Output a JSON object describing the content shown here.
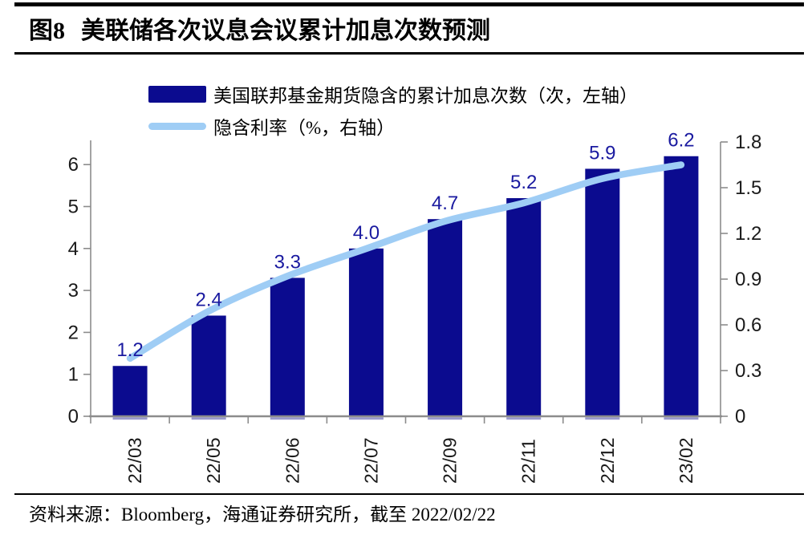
{
  "page": {
    "title_prefix": "图8",
    "title": "美联储各次议息会议累计加息次数预测"
  },
  "legend": [
    {
      "label": "美国联邦基金期货隐含的累计加息次数（次，左轴）",
      "type": "bar",
      "color": "#0b0b8f"
    },
    {
      "label": "隐含利率（%，右轴）",
      "type": "line",
      "color": "#9fcdf5"
    }
  ],
  "source": {
    "text": "资料来源：Bloomberg，海通证券研究所，截至 2022/02/22"
  },
  "chart_data": {
    "type": "bar+line",
    "title": "图8 美联储各次议息会议累计加息次数预测",
    "categories": [
      "22/03",
      "22/05",
      "22/06",
      "22/07",
      "22/09",
      "22/11",
      "22/12",
      "23/02"
    ],
    "series": [
      {
        "name": "美国联邦基金期货隐含的累计加息次数（次，左轴）",
        "type": "bar",
        "axis": "left",
        "values": [
          1.2,
          2.4,
          3.3,
          4.0,
          4.7,
          5.2,
          5.9,
          6.2
        ],
        "value_labels": [
          "1.2",
          "2.4",
          "3.3",
          "4.0",
          "4.7",
          "5.2",
          "5.9",
          "6.2"
        ],
        "color": "#0b0b8f",
        "value_label_color": "#1a1aa0"
      },
      {
        "name": "隐含利率（%，右轴）",
        "type": "line",
        "axis": "right",
        "values": [
          0.38,
          0.69,
          0.92,
          1.1,
          1.28,
          1.4,
          1.56,
          1.65
        ],
        "color": "#9fcdf5"
      }
    ],
    "left_axis": {
      "min": 0,
      "max": 6,
      "tick_labels": [
        "0",
        "1",
        "2",
        "3",
        "4",
        "5",
        "6"
      ]
    },
    "right_axis": {
      "min": 0,
      "max": 1.8,
      "tick_labels": [
        "0",
        "0.3",
        "0.6",
        "0.9",
        "1.2",
        "1.5",
        "1.8"
      ]
    },
    "grid": false,
    "legend_position": "top-left-stacked"
  }
}
